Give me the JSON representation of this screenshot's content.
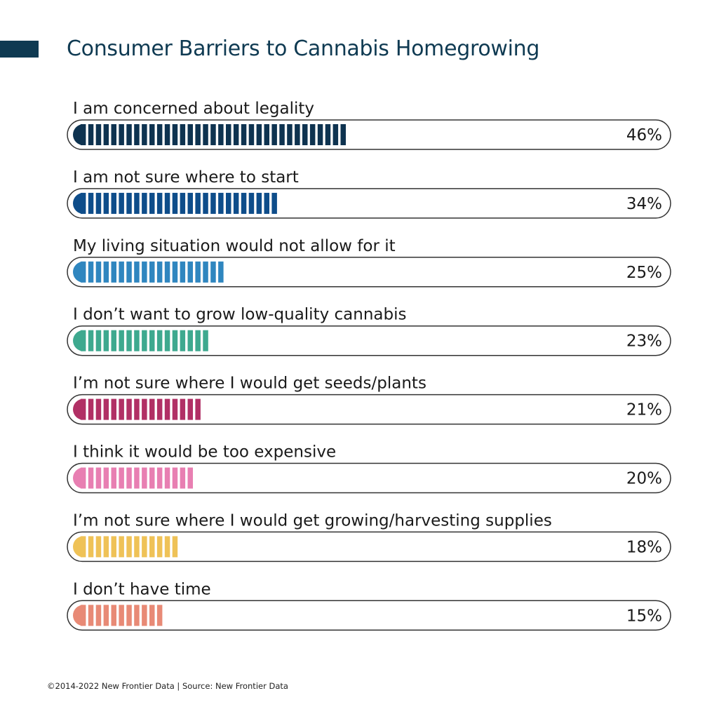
{
  "page": {
    "title": "Consumer Barriers to Cannabis Homegrowing",
    "accent_color": "#0f3a52"
  },
  "footer": {
    "text": "©2014-2022  New Frontier Data | Source: New Frontier Data"
  },
  "chart_data": {
    "type": "bar",
    "orientation": "horizontal",
    "title": "Consumer Barriers to Cannabis Homegrowing",
    "xlabel": "",
    "ylabel": "",
    "xlim": [
      0,
      100
    ],
    "unit": "%",
    "categories": [
      "I am concerned about legality",
      "I am not sure where to start",
      "My living situation would not allow for it",
      "I don’t want to grow low-quality cannabis",
      "I’m not sure where I would get seeds/plants",
      "I think it would be too expensive",
      "I’m not sure where I would get growing/harvesting supplies",
      "I don’t have time"
    ],
    "values": [
      46,
      34,
      25,
      23,
      21,
      20,
      18,
      15
    ],
    "value_labels": [
      "46%",
      "34%",
      "25%",
      "23%",
      "21%",
      "20%",
      "18%",
      "15%"
    ],
    "colors": [
      "#0e3350",
      "#0e4d8a",
      "#2f86bf",
      "#3ea98f",
      "#b13065",
      "#e87fb2",
      "#efc257",
      "#e88a76"
    ]
  }
}
